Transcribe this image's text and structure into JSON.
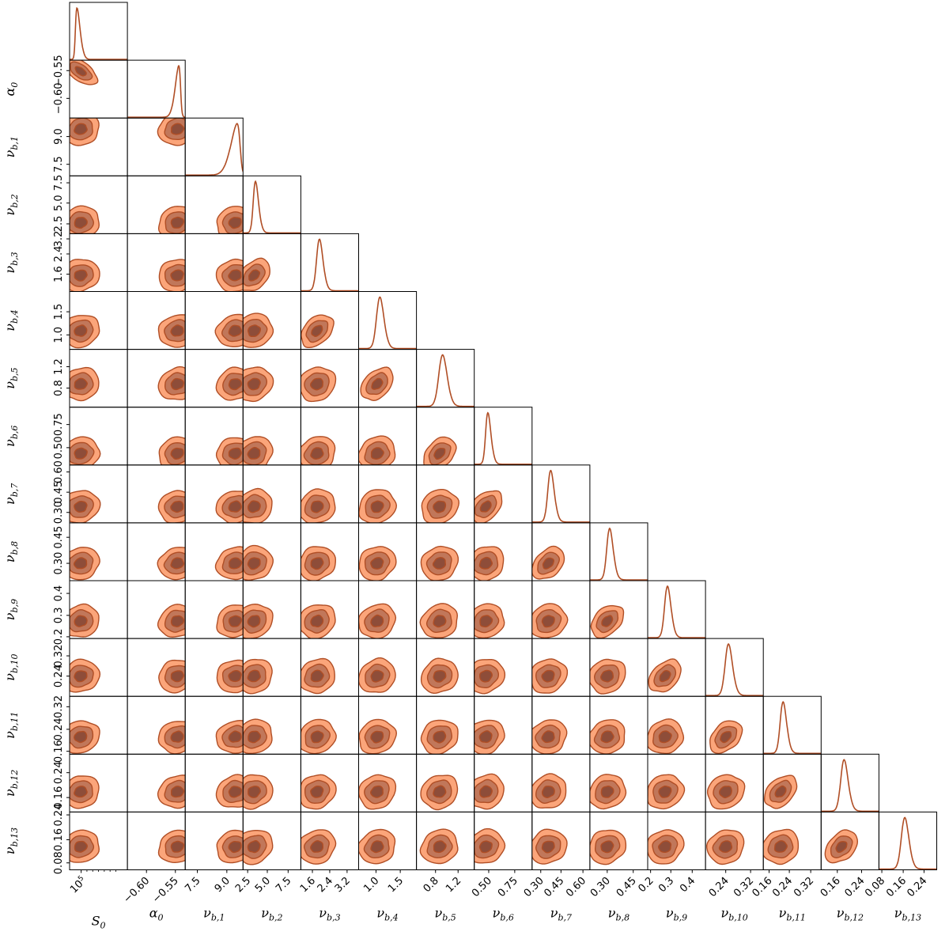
{
  "chart_data": {
    "type": "corner",
    "title": "",
    "colors": {
      "outer": "#fba57a",
      "middle": "#c1775a",
      "inner": "#8e4d39",
      "line": "#b04e25"
    },
    "parameters": [
      {
        "id": "S0",
        "label": "S",
        "sub": "0",
        "peak": 0.1,
        "width": 0.07,
        "skew": 4.0,
        "xticks": [],
        "xticks_special": "10^5",
        "yticks": []
      },
      {
        "id": "alpha0",
        "label": "α",
        "sub": "0",
        "peak": 0.92,
        "width": 0.08,
        "skew": -4.0,
        "xticks": [
          {
            "v": 0.33,
            "t": "−0.60"
          },
          {
            "v": 0.83,
            "t": "−0.55"
          }
        ],
        "yticks": [
          {
            "v": 0.18,
            "t": "−0.55"
          },
          {
            "v": 0.66,
            "t": "−0.60"
          }
        ]
      },
      {
        "id": "nu1",
        "label": "ν",
        "sub": "b,1",
        "peak": 0.95,
        "width": 0.14,
        "skew": -4.5,
        "xticks": [
          {
            "v": 0.21,
            "t": "7.5"
          },
          {
            "v": 0.72,
            "t": "9.0"
          }
        ],
        "yticks": [
          {
            "v": 0.32,
            "t": "9.0"
          },
          {
            "v": 0.8,
            "t": "7.5"
          }
        ]
      },
      {
        "id": "nu2",
        "label": "ν",
        "sub": "b,2",
        "peak": 0.18,
        "width": 0.07,
        "skew": 2.0,
        "xticks": [
          {
            "v": 0.08,
            "t": "2.5"
          },
          {
            "v": 0.42,
            "t": "5.0"
          },
          {
            "v": 0.78,
            "t": "7.5"
          }
        ],
        "yticks": [
          {
            "v": 0.12,
            "t": "7.5"
          },
          {
            "v": 0.47,
            "t": "5.0"
          },
          {
            "v": 0.83,
            "t": "2.5"
          }
        ]
      },
      {
        "id": "nu3",
        "label": "ν",
        "sub": "b,3",
        "peak": 0.28,
        "width": 0.08,
        "skew": 1.6,
        "xticks": [
          {
            "v": 0.2,
            "t": "1.6"
          },
          {
            "v": 0.5,
            "t": "2.4"
          },
          {
            "v": 0.8,
            "t": "3.2"
          }
        ],
        "yticks": [
          {
            "v": 0.09,
            "t": "3.2"
          },
          {
            "v": 0.35,
            "t": "2.4"
          },
          {
            "v": 0.7,
            "t": "1.6"
          }
        ]
      },
      {
        "id": "nu4",
        "label": "ν",
        "sub": "b,4",
        "peak": 0.32,
        "width": 0.09,
        "skew": 1.5,
        "xticks": [
          {
            "v": 0.3,
            "t": "1.0"
          },
          {
            "v": 0.72,
            "t": "1.5"
          }
        ],
        "yticks": [
          {
            "v": 0.35,
            "t": "1.5"
          },
          {
            "v": 0.75,
            "t": "1.0"
          }
        ]
      },
      {
        "id": "nu5",
        "label": "ν",
        "sub": "b,5",
        "peak": 0.4,
        "width": 0.1,
        "skew": 1.4,
        "xticks": [
          {
            "v": 0.33,
            "t": "0.8"
          },
          {
            "v": 0.72,
            "t": "1.2"
          }
        ],
        "yticks": [
          {
            "v": 0.3,
            "t": "1.2"
          },
          {
            "v": 0.67,
            "t": "0.8"
          }
        ]
      },
      {
        "id": "nu6",
        "label": "ν",
        "sub": "b,6",
        "peak": 0.2,
        "width": 0.07,
        "skew": 2.0,
        "xticks": [
          {
            "v": 0.25,
            "t": "0.50"
          },
          {
            "v": 0.7,
            "t": "0.75"
          }
        ],
        "yticks": [
          {
            "v": 0.3,
            "t": "0.75"
          },
          {
            "v": 0.7,
            "t": "0.50"
          }
        ]
      },
      {
        "id": "nu7",
        "label": "ν",
        "sub": "b,7",
        "peak": 0.28,
        "width": 0.08,
        "skew": 1.6,
        "xticks": [
          {
            "v": 0.15,
            "t": "0.30"
          },
          {
            "v": 0.5,
            "t": "0.45"
          },
          {
            "v": 0.88,
            "t": "0.60"
          }
        ],
        "yticks": [
          {
            "v": 0.12,
            "t": "0.60"
          },
          {
            "v": 0.47,
            "t": "0.45"
          },
          {
            "v": 0.82,
            "t": "0.30"
          }
        ]
      },
      {
        "id": "nu8",
        "label": "ν",
        "sub": "b,8",
        "peak": 0.3,
        "width": 0.08,
        "skew": 1.6,
        "xticks": [
          {
            "v": 0.3,
            "t": "0.30"
          },
          {
            "v": 0.75,
            "t": "0.45"
          }
        ],
        "yticks": [
          {
            "v": 0.25,
            "t": "0.45"
          },
          {
            "v": 0.7,
            "t": "0.30"
          }
        ]
      },
      {
        "id": "nu9",
        "label": "ν",
        "sub": "b,9",
        "peak": 0.3,
        "width": 0.08,
        "skew": 1.6,
        "xticks": [
          {
            "v": 0.05,
            "t": "0.2"
          },
          {
            "v": 0.4,
            "t": "0.3"
          },
          {
            "v": 0.77,
            "t": "0.4"
          }
        ],
        "yticks": [
          {
            "v": 0.22,
            "t": "0.4"
          },
          {
            "v": 0.6,
            "t": "0.3"
          },
          {
            "v": 0.97,
            "t": "0.2"
          }
        ]
      },
      {
        "id": "nu10",
        "label": "ν",
        "sub": "b,10",
        "peak": 0.35,
        "width": 0.09,
        "skew": 1.5,
        "xticks": [
          {
            "v": 0.35,
            "t": "0.24"
          },
          {
            "v": 0.78,
            "t": "0.32"
          }
        ],
        "yticks": [
          {
            "v": 0.3,
            "t": "0.32"
          },
          {
            "v": 0.65,
            "t": "0.24"
          }
        ]
      },
      {
        "id": "nu11",
        "label": "ν",
        "sub": "b,11",
        "peak": 0.3,
        "width": 0.08,
        "skew": 1.6,
        "xticks": [
          {
            "v": 0.1,
            "t": "0.16"
          },
          {
            "v": 0.45,
            "t": "0.24"
          },
          {
            "v": 0.82,
            "t": "0.32"
          }
        ],
        "yticks": [
          {
            "v": 0.18,
            "t": "0.32"
          },
          {
            "v": 0.57,
            "t": "0.24"
          },
          {
            "v": 0.95,
            "t": "0.16"
          }
        ]
      },
      {
        "id": "nu12",
        "label": "ν",
        "sub": "b,12",
        "peak": 0.35,
        "width": 0.09,
        "skew": 1.5,
        "xticks": [
          {
            "v": 0.28,
            "t": "0.16"
          },
          {
            "v": 0.7,
            "t": "0.24"
          }
        ],
        "yticks": [
          {
            "v": 0.32,
            "t": "0.24"
          },
          {
            "v": 0.75,
            "t": "0.16"
          }
        ]
      },
      {
        "id": "nu13",
        "label": "ν",
        "sub": "b,13",
        "peak": 0.4,
        "width": 0.09,
        "skew": 1.4,
        "xticks": [
          {
            "v": 0.05,
            "t": "0.08"
          },
          {
            "v": 0.42,
            "t": "0.16"
          },
          {
            "v": 0.78,
            "t": "0.24"
          }
        ],
        "yticks": [
          {
            "v": 0.05,
            "t": "0.24"
          },
          {
            "v": 0.48,
            "t": "0.16"
          },
          {
            "v": 0.88,
            "t": "0.08"
          }
        ]
      }
    ],
    "levels": [
      "outer",
      "middle",
      "inner"
    ]
  }
}
